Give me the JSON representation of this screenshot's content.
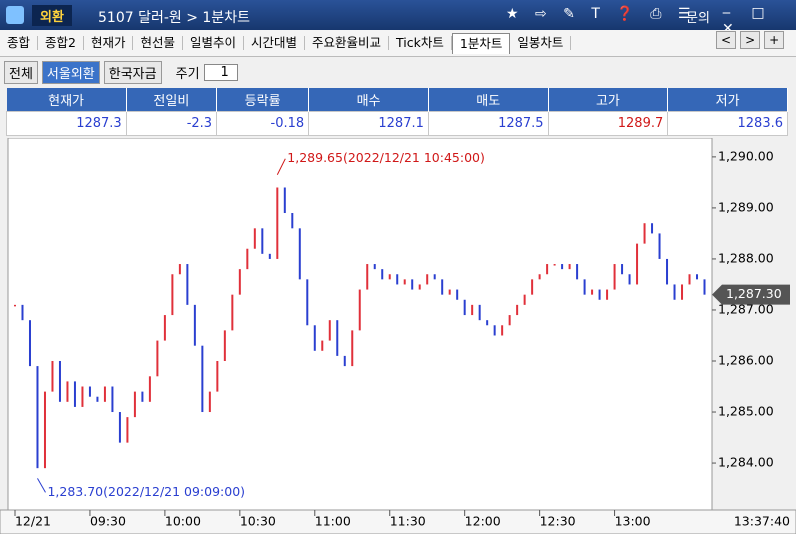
{
  "header": {
    "badge": "외환",
    "title": "5107 달러-원 > 1분차트",
    "help": "문의"
  },
  "tabs": [
    "종합",
    "종합2",
    "현재가",
    "현선물",
    "일별추이",
    "시간대별",
    "주요환율비교",
    "Tick차트",
    "1분차트",
    "일봉차트"
  ],
  "toolbar": {
    "buttons": [
      "전체",
      "서울외환",
      "한국자금"
    ],
    "period_label": "주기",
    "period": "1"
  },
  "quote": {
    "headers": [
      "현재가",
      "전일비",
      "등락률",
      "매수",
      "매도",
      "고가",
      "저가"
    ],
    "values": [
      1287.3,
      -2.3,
      -0.18,
      1287.1,
      1287.5,
      1289.7,
      1283.6
    ]
  },
  "chart_data": {
    "type": "ohlc-steps",
    "color_up": "#e0303a",
    "color_down": "#2a3fd0",
    "x": [
      "09:00",
      "09:03",
      "09:06",
      "09:09",
      "09:12",
      "09:15",
      "09:18",
      "09:21",
      "09:24",
      "09:27",
      "09:30",
      "09:33",
      "09:36",
      "09:39",
      "09:42",
      "09:45",
      "09:48",
      "09:51",
      "09:54",
      "09:57",
      "10:00",
      "10:03",
      "10:06",
      "10:09",
      "10:12",
      "10:15",
      "10:18",
      "10:21",
      "10:24",
      "10:27",
      "10:30",
      "10:33",
      "10:36",
      "10:39",
      "10:42",
      "10:45",
      "10:48",
      "10:51",
      "10:54",
      "10:57",
      "11:00",
      "11:03",
      "11:06",
      "11:09",
      "11:12",
      "11:15",
      "11:18",
      "11:21",
      "11:24",
      "11:27",
      "11:30",
      "11:33",
      "11:36",
      "11:39",
      "11:42",
      "11:45",
      "11:48",
      "11:51",
      "11:54",
      "11:57",
      "12:00",
      "12:03",
      "12:06",
      "12:09",
      "12:12",
      "12:15",
      "12:18",
      "12:21",
      "12:24",
      "12:27",
      "12:30",
      "12:33",
      "12:36",
      "12:39",
      "12:42",
      "12:45",
      "12:48",
      "12:51",
      "12:54",
      "12:57",
      "13:00",
      "13:03",
      "13:06",
      "13:09",
      "13:12",
      "13:15",
      "13:18",
      "13:21",
      "13:24",
      "13:27",
      "13:30",
      "13:33",
      "13:36"
    ],
    "values": [
      1287.1,
      1286.8,
      1285.9,
      1283.9,
      1285.4,
      1286.0,
      1285.2,
      1285.6,
      1285.1,
      1285.5,
      1285.3,
      1285.2,
      1285.5,
      1285.0,
      1284.4,
      1284.9,
      1285.4,
      1285.2,
      1285.7,
      1286.4,
      1286.9,
      1287.7,
      1287.9,
      1287.1,
      1286.3,
      1285.0,
      1285.4,
      1286.0,
      1286.6,
      1287.3,
      1287.8,
      1288.2,
      1288.6,
      1288.1,
      1288.0,
      1289.4,
      1288.9,
      1288.6,
      1287.6,
      1286.7,
      1286.2,
      1286.4,
      1286.8,
      1286.1,
      1285.9,
      1286.6,
      1287.4,
      1287.9,
      1287.8,
      1287.6,
      1287.7,
      1287.5,
      1287.6,
      1287.4,
      1287.5,
      1287.7,
      1287.6,
      1287.3,
      1287.4,
      1287.2,
      1286.9,
      1287.1,
      1286.8,
      1286.7,
      1286.5,
      1286.7,
      1286.9,
      1287.1,
      1287.3,
      1287.6,
      1287.7,
      1287.9,
      1287.9,
      1287.8,
      1287.9,
      1287.6,
      1287.3,
      1287.4,
      1287.2,
      1287.4,
      1287.9,
      1287.7,
      1287.5,
      1288.3,
      1288.7,
      1288.5,
      1288.0,
      1287.5,
      1287.2,
      1287.5,
      1287.7,
      1287.6,
      1287.3
    ],
    "xlim": [
      "08:58",
      "13:39"
    ],
    "xticks": [
      {
        "value": "09:00",
        "label": "12/21"
      },
      "09:30",
      "10:00",
      "10:30",
      "11:00",
      "11:30",
      "12:00",
      "12:30",
      "13:00"
    ],
    "ylim": [
      1283.08,
      1290.37
    ],
    "yticks": [
      {
        "value": 1284,
        "label": "1,284.00"
      },
      {
        "value": 1285,
        "label": "1,285.00"
      },
      {
        "value": 1286,
        "label": "1,286.00"
      },
      {
        "value": 1287,
        "label": "1,287.00"
      },
      {
        "value": 1288,
        "label": "1,288.00"
      },
      {
        "value": 1289,
        "label": "1,289.00"
      },
      {
        "value": 1290,
        "label": "1,290.00"
      }
    ],
    "annotations": [
      {
        "text": "1,289.65(2022/12/21 10:45:00)",
        "x": "10:45",
        "y": 1289.65,
        "color": "#d01818"
      },
      {
        "text": "1,283.70(2022/12/21 09:09:00)",
        "x": "09:09",
        "y": 1283.7,
        "color": "#2a3fd0"
      }
    ],
    "current": {
      "value": 1287.3,
      "label": "1,287.30"
    },
    "current_time": "13:37:40"
  }
}
